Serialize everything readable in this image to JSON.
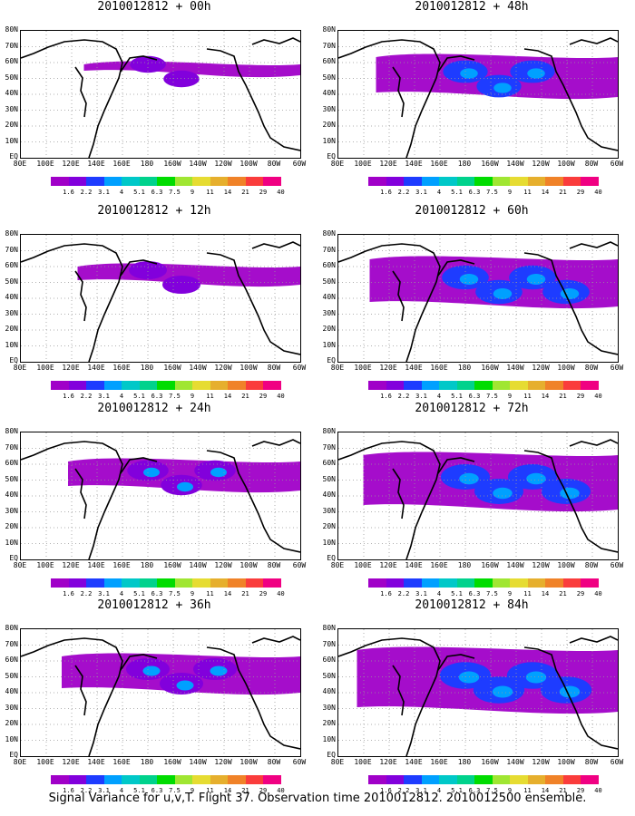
{
  "panels": [
    {
      "title": "2010012812 + 00h",
      "coverage": 0.15
    },
    {
      "title": "2010012812 + 48h",
      "coverage": 0.55
    },
    {
      "title": "2010012812 + 12h",
      "coverage": 0.25
    },
    {
      "title": "2010012812 + 60h",
      "coverage": 0.65
    },
    {
      "title": "2010012812 + 24h",
      "coverage": 0.4
    },
    {
      "title": "2010012812 + 72h",
      "coverage": 0.75
    },
    {
      "title": "2010012812 + 36h",
      "coverage": 0.5
    },
    {
      "title": "2010012812 + 84h",
      "coverage": 0.85
    }
  ],
  "lat_labels": [
    "80N",
    "70N",
    "60N",
    "50N",
    "40N",
    "30N",
    "20N",
    "10N",
    "EQ"
  ],
  "lon_labels": [
    "80E",
    "100E",
    "120E",
    "140E",
    "160E",
    "180",
    "160W",
    "140W",
    "120W",
    "100W",
    "80W",
    "60W"
  ],
  "colorbar": {
    "labels": [
      "1.6",
      "2.2",
      "3.1",
      "4",
      "5.1",
      "6.3",
      "7.5",
      "9",
      "11",
      "14",
      "21",
      "29",
      "40"
    ],
    "colors": [
      "#a000c8",
      "#8200dc",
      "#1e3cff",
      "#00a0ff",
      "#00c8c8",
      "#00d28c",
      "#00dc00",
      "#a0e632",
      "#e6dc32",
      "#e6af2d",
      "#f08228",
      "#fa3c3c",
      "#f00082"
    ]
  },
  "caption": "Signal Variance for u,v,T. Flight 37. Observation time 2010012812. 2010012500 ensemble."
}
